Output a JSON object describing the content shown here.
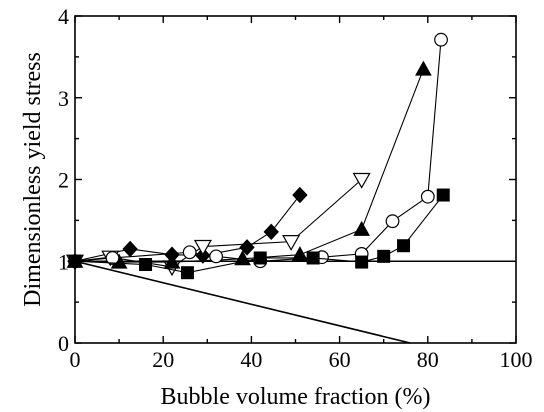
{
  "chart_data": {
    "type": "scatter",
    "xlabel": "Bubble volume fraction (%)",
    "ylabel": "Dimensionless yield stress",
    "xlim": [
      0,
      100
    ],
    "ylim": [
      0,
      4
    ],
    "xticks": [
      0,
      20,
      40,
      60,
      80,
      100
    ],
    "yticks": [
      0,
      1,
      2,
      3,
      4
    ],
    "x_tick_labels": [
      "0",
      "20",
      "40",
      "60",
      "80",
      "100"
    ],
    "y_tick_labels": [
      "0",
      "1",
      "2",
      "3",
      "4"
    ],
    "grid": false,
    "series": [
      {
        "marker": "filled-diamond",
        "color": "#000000",
        "x": [
          0,
          12.5,
          22,
          29,
          39,
          44.5,
          51
        ],
        "y": [
          1.0,
          1.15,
          1.08,
          1.07,
          1.17,
          1.36,
          1.81
        ]
      },
      {
        "marker": "open-triangle-down",
        "color": "#000000",
        "x": [
          0,
          8,
          22,
          29,
          49,
          65
        ],
        "y": [
          1.0,
          1.05,
          0.93,
          1.18,
          1.24,
          2.0
        ]
      },
      {
        "marker": "filled-triangle-up",
        "color": "#000000",
        "x": [
          0,
          10,
          22,
          38,
          51,
          65,
          79
        ],
        "y": [
          1.0,
          0.99,
          0.99,
          1.03,
          1.08,
          1.39,
          3.35
        ]
      },
      {
        "marker": "open-circle",
        "color": "#000000",
        "x": [
          0,
          8.5,
          26,
          32,
          42,
          56,
          65,
          72,
          80,
          83
        ],
        "y": [
          1.0,
          1.04,
          1.11,
          1.06,
          1.0,
          1.05,
          1.09,
          1.49,
          1.79,
          3.71
        ]
      },
      {
        "marker": "filled-square",
        "color": "#000000",
        "x": [
          0,
          16,
          25.5,
          42,
          54,
          65,
          70,
          74.5,
          83.5
        ],
        "y": [
          1.0,
          0.96,
          0.86,
          1.04,
          1.04,
          0.99,
          1.06,
          1.19,
          1.81
        ]
      }
    ],
    "reference_lines": [
      {
        "x": [
          0,
          100
        ],
        "y": [
          1,
          1
        ]
      },
      {
        "x": [
          0,
          76
        ],
        "y": [
          1,
          0
        ]
      }
    ]
  }
}
